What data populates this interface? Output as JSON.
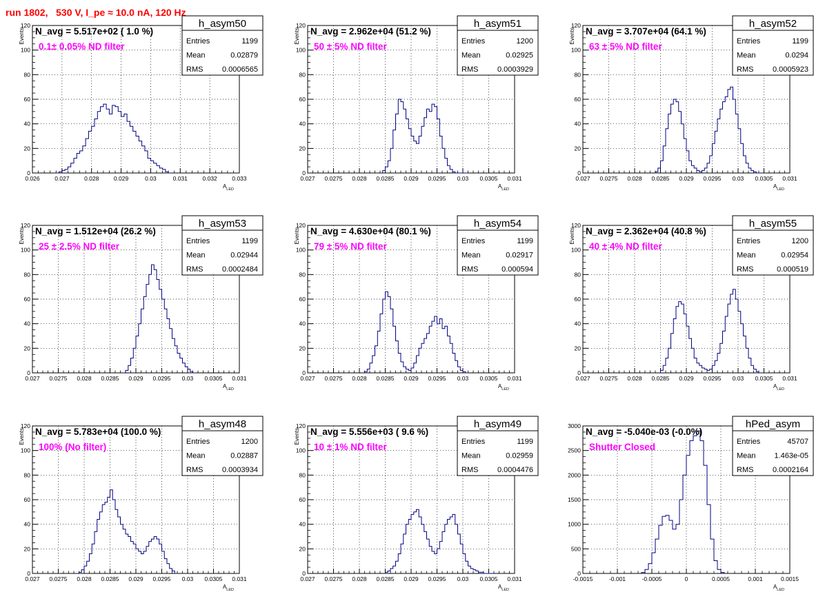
{
  "main_title": "run 1802,   530 V, I_pe ≈ 10.0 nA, 120 Hz",
  "colors": {
    "title": "#ff0000",
    "annotation": "#ff00ff",
    "histogram": "#000080",
    "grid": "#000000"
  },
  "chart_data": [
    {
      "type": "histogram",
      "name": "h_asym50",
      "ylabel": "Events",
      "xlabel": "A",
      "xlabel_sub": "LED",
      "navg": "N_avg = 5.517e+02 ( 1.0 %)",
      "filter": "0.1± 0.05% ND filter",
      "stats": {
        "entries_label": "Entries",
        "entries": "1199",
        "mean_label": "Mean",
        "mean": "0.02879",
        "rms_label": "RMS",
        "rms": "0.0006565"
      },
      "xlim": [
        0.026,
        0.033
      ],
      "ylim": [
        0,
        120
      ],
      "xticks": [
        0.026,
        0.027,
        0.028,
        0.029,
        0.03,
        0.031,
        0.032,
        0.033
      ],
      "xtick_labels": [
        "0.026",
        "0.027",
        "0.028",
        "0.029",
        "0.03",
        "0.031",
        "0.032",
        "0.033"
      ],
      "yticks": [
        0,
        20,
        40,
        60,
        80,
        100,
        120
      ],
      "ytick_labels": [
        "0",
        "20",
        "40",
        "60",
        "80",
        "100",
        "120"
      ],
      "grid": true,
      "bins": [
        0.0268,
        0.0269,
        0.027,
        0.0271,
        0.0272,
        0.0273,
        0.0274,
        0.0275,
        0.0276,
        0.0277,
        0.0278,
        0.0279,
        0.028,
        0.0281,
        0.0282,
        0.0283,
        0.0284,
        0.0285,
        0.0286,
        0.0287,
        0.0288,
        0.0289,
        0.029,
        0.0291,
        0.0292,
        0.0293,
        0.0294,
        0.0295,
        0.0296,
        0.0297,
        0.0298,
        0.0299,
        0.03,
        0.0301,
        0.0302,
        0.0303,
        0.0304,
        0.0305,
        0.0306
      ],
      "values": [
        0,
        1,
        2,
        3,
        5,
        8,
        12,
        16,
        18,
        22,
        28,
        34,
        38,
        44,
        50,
        54,
        56,
        52,
        48,
        55,
        54,
        50,
        46,
        48,
        42,
        38,
        34,
        30,
        26,
        22,
        18,
        12,
        10,
        8,
        6,
        4,
        3,
        1,
        0
      ]
    },
    {
      "type": "histogram",
      "name": "h_asym51",
      "ylabel": "Events",
      "xlabel": "A",
      "xlabel_sub": "LED",
      "navg": "N_avg = 2.962e+04 (51.2 %)",
      "filter": "50 ± 5% ND filter",
      "stats": {
        "entries_label": "Entries",
        "entries": "1200",
        "mean_label": "Mean",
        "mean": "0.02925",
        "rms_label": "RMS",
        "rms": "0.0003929"
      },
      "xlim": [
        0.027,
        0.031
      ],
      "ylim": [
        0,
        120
      ],
      "xticks": [
        0.027,
        0.0275,
        0.028,
        0.0285,
        0.029,
        0.0295,
        0.03,
        0.0305,
        0.031
      ],
      "xtick_labels": [
        "0.027",
        "0.0275",
        "0.028",
        "0.0285",
        "0.029",
        "0.0295",
        "0.03",
        "0.0305",
        "0.031"
      ],
      "yticks": [
        0,
        20,
        40,
        60,
        80,
        100,
        120
      ],
      "ytick_labels": [
        "0",
        "20",
        "40",
        "60",
        "80",
        "100",
        "120"
      ],
      "grid": true,
      "bins": [
        0.02845,
        0.0285,
        0.02855,
        0.0286,
        0.02865,
        0.0287,
        0.02875,
        0.0288,
        0.02885,
        0.0289,
        0.02895,
        0.029,
        0.02905,
        0.0291,
        0.02915,
        0.0292,
        0.02925,
        0.0293,
        0.02935,
        0.0294,
        0.02945,
        0.0295,
        0.02955,
        0.0296,
        0.02965,
        0.0297,
        0.02975,
        0.0298,
        0.02985,
        0.0299,
        0.02995,
        0.03,
        0.03005
      ],
      "values": [
        2,
        5,
        10,
        20,
        35,
        48,
        60,
        58,
        52,
        44,
        36,
        30,
        26,
        24,
        30,
        38,
        45,
        52,
        50,
        56,
        54,
        44,
        30,
        20,
        12,
        6,
        3,
        1,
        0,
        0,
        0,
        0,
        0
      ]
    },
    {
      "type": "histogram",
      "name": "h_asym52",
      "ylabel": "Events",
      "xlabel": "A",
      "xlabel_sub": "LED",
      "navg": "N_avg = 3.707e+04 (64.1 %)",
      "filter": "63 ± 5% ND filter",
      "stats": {
        "entries_label": "Entries",
        "entries": "1199",
        "mean_label": "Mean",
        "mean": "0.0294",
        "rms_label": "RMS",
        "rms": "0.0005923"
      },
      "xlim": [
        0.027,
        0.031
      ],
      "ylim": [
        0,
        120
      ],
      "xticks": [
        0.027,
        0.0275,
        0.028,
        0.0285,
        0.029,
        0.0295,
        0.03,
        0.0305,
        0.031
      ],
      "xtick_labels": [
        "0.027",
        "0.0275",
        "0.028",
        "0.0285",
        "0.029",
        "0.0295",
        "0.03",
        "0.0305",
        "0.031"
      ],
      "yticks": [
        0,
        20,
        40,
        60,
        80,
        100,
        120
      ],
      "ytick_labels": [
        "0",
        "20",
        "40",
        "60",
        "80",
        "100",
        "120"
      ],
      "grid": true,
      "bins": [
        0.0284,
        0.02845,
        0.0285,
        0.02855,
        0.0286,
        0.02865,
        0.0287,
        0.02875,
        0.0288,
        0.02885,
        0.0289,
        0.02895,
        0.029,
        0.02905,
        0.0291,
        0.02915,
        0.0292,
        0.02925,
        0.0293,
        0.02935,
        0.0294,
        0.02945,
        0.0295,
        0.02955,
        0.0296,
        0.02965,
        0.0297,
        0.02975,
        0.0298,
        0.02985,
        0.0299,
        0.02995,
        0.03,
        0.03005,
        0.0301,
        0.03015,
        0.0302,
        0.03025,
        0.0303,
        0.03035,
        0.0304
      ],
      "values": [
        1,
        4,
        10,
        22,
        36,
        48,
        56,
        60,
        58,
        50,
        40,
        28,
        18,
        10,
        6,
        4,
        2,
        1,
        2,
        4,
        8,
        14,
        24,
        34,
        44,
        52,
        58,
        62,
        68,
        70,
        60,
        48,
        36,
        24,
        14,
        8,
        4,
        2,
        1,
        0,
        0
      ]
    },
    {
      "type": "histogram",
      "name": "h_asym53",
      "ylabel": "Events",
      "xlabel": "A",
      "xlabel_sub": "LED",
      "navg": "N_avg = 1.512e+04 (26.2 %)",
      "filter": "25 ± 2.5% ND filter",
      "stats": {
        "entries_label": "Entries",
        "entries": "1199",
        "mean_label": "Mean",
        "mean": "0.02944",
        "rms_label": "RMS",
        "rms": "0.0002484"
      },
      "xlim": [
        0.027,
        0.031
      ],
      "ylim": [
        0,
        120
      ],
      "xticks": [
        0.027,
        0.0275,
        0.028,
        0.0285,
        0.029,
        0.0295,
        0.03,
        0.0305,
        0.031
      ],
      "xtick_labels": [
        "0.027",
        "0.0275",
        "0.028",
        "0.0285",
        "0.029",
        "0.0295",
        "0.03",
        "0.0305",
        "0.031"
      ],
      "yticks": [
        0,
        20,
        40,
        60,
        80,
        100,
        120
      ],
      "ytick_labels": [
        "0",
        "20",
        "40",
        "60",
        "80",
        "100",
        "120"
      ],
      "grid": true,
      "bins": [
        0.0288,
        0.02885,
        0.0289,
        0.02895,
        0.029,
        0.02905,
        0.0291,
        0.02915,
        0.0292,
        0.02925,
        0.0293,
        0.02935,
        0.0294,
        0.02945,
        0.0295,
        0.02955,
        0.0296,
        0.02965,
        0.0297,
        0.02975,
        0.0298,
        0.02985,
        0.0299,
        0.02995,
        0.03,
        0.03005,
        0.0301
      ],
      "values": [
        2,
        6,
        12,
        20,
        30,
        40,
        52,
        62,
        72,
        80,
        88,
        84,
        76,
        68,
        60,
        52,
        44,
        36,
        28,
        22,
        16,
        12,
        8,
        5,
        3,
        1,
        0
      ]
    },
    {
      "type": "histogram",
      "name": "h_asym54",
      "ylabel": "Events",
      "xlabel": "A",
      "xlabel_sub": "LED",
      "navg": "N_avg = 4.630e+04 (80.1 %)",
      "filter": "79 ± 5% ND filter",
      "stats": {
        "entries_label": "Entries",
        "entries": "1199",
        "mean_label": "Mean",
        "mean": "0.02917",
        "rms_label": "RMS",
        "rms": "0.000594"
      },
      "xlim": [
        0.027,
        0.031
      ],
      "ylim": [
        0,
        120
      ],
      "xticks": [
        0.027,
        0.0275,
        0.028,
        0.0285,
        0.029,
        0.0295,
        0.03,
        0.0305,
        0.031
      ],
      "xtick_labels": [
        "0.027",
        "0.0275",
        "0.028",
        "0.0285",
        "0.029",
        "0.0295",
        "0.03",
        "0.0305",
        "0.031"
      ],
      "yticks": [
        0,
        20,
        40,
        60,
        80,
        100,
        120
      ],
      "ytick_labels": [
        "0",
        "20",
        "40",
        "60",
        "80",
        "100",
        "120"
      ],
      "grid": true,
      "bins": [
        0.0281,
        0.02815,
        0.0282,
        0.02825,
        0.0283,
        0.02835,
        0.0284,
        0.02845,
        0.0285,
        0.02855,
        0.0286,
        0.02865,
        0.0287,
        0.02875,
        0.0288,
        0.02885,
        0.0289,
        0.02895,
        0.029,
        0.02905,
        0.0291,
        0.02915,
        0.0292,
        0.02925,
        0.0293,
        0.02935,
        0.0294,
        0.02945,
        0.0295,
        0.02955,
        0.0296,
        0.02965,
        0.0297,
        0.02975,
        0.0298,
        0.02985,
        0.0299,
        0.02995,
        0.03,
        0.03005
      ],
      "values": [
        1,
        3,
        8,
        14,
        22,
        34,
        48,
        60,
        66,
        62,
        52,
        38,
        26,
        16,
        9,
        5,
        3,
        2,
        4,
        8,
        14,
        20,
        24,
        28,
        32,
        38,
        42,
        46,
        40,
        44,
        36,
        38,
        30,
        24,
        16,
        10,
        5,
        2,
        1,
        0
      ]
    },
    {
      "type": "histogram",
      "name": "h_asym55",
      "ylabel": "Events",
      "xlabel": "A",
      "xlabel_sub": "LED",
      "navg": "N_avg = 2.362e+04 (40.8 %)",
      "filter": "40 ± 4% ND filter",
      "stats": {
        "entries_label": "Entries",
        "entries": "1200",
        "mean_label": "Mean",
        "mean": "0.02954",
        "rms_label": "RMS",
        "rms": "0.000519"
      },
      "xlim": [
        0.027,
        0.031
      ],
      "ylim": [
        0,
        120
      ],
      "xticks": [
        0.027,
        0.0275,
        0.028,
        0.0285,
        0.029,
        0.0295,
        0.03,
        0.0305,
        0.031
      ],
      "xtick_labels": [
        "0.027",
        "0.0275",
        "0.028",
        "0.0285",
        "0.029",
        "0.0295",
        "0.03",
        "0.0305",
        "0.031"
      ],
      "yticks": [
        0,
        20,
        40,
        60,
        80,
        100,
        120
      ],
      "ytick_labels": [
        "0",
        "20",
        "40",
        "60",
        "80",
        "100",
        "120"
      ],
      "grid": true,
      "bins": [
        0.0285,
        0.02855,
        0.0286,
        0.02865,
        0.0287,
        0.02875,
        0.0288,
        0.02885,
        0.0289,
        0.02895,
        0.029,
        0.02905,
        0.0291,
        0.02915,
        0.0292,
        0.02925,
        0.0293,
        0.02935,
        0.0294,
        0.02945,
        0.0295,
        0.02955,
        0.0296,
        0.02965,
        0.0297,
        0.02975,
        0.0298,
        0.02985,
        0.0299,
        0.02995,
        0.03,
        0.03005,
        0.0301,
        0.03015,
        0.0302,
        0.03025,
        0.0303,
        0.03035,
        0.0304
      ],
      "values": [
        2,
        6,
        12,
        20,
        32,
        44,
        54,
        58,
        56,
        48,
        38,
        28,
        20,
        12,
        8,
        6,
        4,
        3,
        2,
        3,
        6,
        10,
        16,
        24,
        34,
        46,
        56,
        64,
        68,
        60,
        50,
        40,
        30,
        20,
        12,
        6,
        3,
        1,
        0
      ]
    },
    {
      "type": "histogram",
      "name": "h_asym48",
      "ylabel": "Events",
      "xlabel": "A",
      "xlabel_sub": "LED",
      "navg": "N_avg = 5.783e+04 (100.0 %)",
      "filter": "100% (No filter)",
      "stats": {
        "entries_label": "Entries",
        "entries": "1200",
        "mean_label": "Mean",
        "mean": "0.02887",
        "rms_label": "RMS",
        "rms": "0.0003934"
      },
      "xlim": [
        0.027,
        0.031
      ],
      "ylim": [
        0,
        120
      ],
      "xticks": [
        0.027,
        0.0275,
        0.028,
        0.0285,
        0.029,
        0.0295,
        0.03,
        0.0305,
        0.031
      ],
      "xtick_labels": [
        "0.027",
        "0.0275",
        "0.028",
        "0.0285",
        "0.029",
        "0.0295",
        "0.03",
        "0.0305",
        "0.031"
      ],
      "yticks": [
        0,
        20,
        40,
        60,
        80,
        100,
        120
      ],
      "ytick_labels": [
        "0",
        "20",
        "40",
        "60",
        "80",
        "100",
        "120"
      ],
      "grid": true,
      "bins": [
        0.0279,
        0.02795,
        0.028,
        0.02805,
        0.0281,
        0.02815,
        0.0282,
        0.02825,
        0.0283,
        0.02835,
        0.0284,
        0.02845,
        0.0285,
        0.02855,
        0.0286,
        0.02865,
        0.0287,
        0.02875,
        0.0288,
        0.02885,
        0.0289,
        0.02895,
        0.029,
        0.02905,
        0.0291,
        0.02915,
        0.0292,
        0.02925,
        0.0293,
        0.02935,
        0.0294,
        0.02945,
        0.0295,
        0.02955,
        0.0296,
        0.02965,
        0.0297,
        0.02975
      ],
      "values": [
        1,
        3,
        6,
        10,
        16,
        24,
        34,
        44,
        50,
        56,
        58,
        62,
        68,
        60,
        52,
        46,
        40,
        36,
        32,
        30,
        26,
        24,
        20,
        18,
        16,
        18,
        22,
        26,
        28,
        30,
        28,
        24,
        18,
        12,
        8,
        4,
        2,
        0
      ]
    },
    {
      "type": "histogram",
      "name": "h_asym49",
      "ylabel": "Events",
      "xlabel": "A",
      "xlabel_sub": "LED",
      "navg": "N_avg = 5.556e+03 ( 9.6 %)",
      "filter": "10 ± 1% ND filter",
      "stats": {
        "entries_label": "Entries",
        "entries": "1199",
        "mean_label": "Mean",
        "mean": "0.02959",
        "rms_label": "RMS",
        "rms": "0.0004476"
      },
      "xlim": [
        0.027,
        0.031
      ],
      "ylim": [
        0,
        120
      ],
      "xticks": [
        0.027,
        0.0275,
        0.028,
        0.0285,
        0.029,
        0.0295,
        0.03,
        0.0305,
        0.031
      ],
      "xtick_labels": [
        "0.027",
        "0.0275",
        "0.028",
        "0.0285",
        "0.029",
        "0.0295",
        "0.03",
        "0.0305",
        "0.031"
      ],
      "yticks": [
        0,
        20,
        40,
        60,
        80,
        100,
        120
      ],
      "ytick_labels": [
        "0",
        "20",
        "40",
        "60",
        "80",
        "100",
        "120"
      ],
      "grid": true,
      "bins": [
        0.0285,
        0.02855,
        0.0286,
        0.02865,
        0.0287,
        0.02875,
        0.0288,
        0.02885,
        0.0289,
        0.02895,
        0.029,
        0.02905,
        0.0291,
        0.02915,
        0.0292,
        0.02925,
        0.0293,
        0.02935,
        0.0294,
        0.02945,
        0.0295,
        0.02955,
        0.0296,
        0.02965,
        0.0297,
        0.02975,
        0.0298,
        0.02985,
        0.0299,
        0.02995,
        0.03,
        0.03005,
        0.0301,
        0.03015,
        0.0302,
        0.03025,
        0.0303,
        0.03035,
        0.0304,
        0.03045,
        0.0305,
        0.03055
      ],
      "values": [
        1,
        2,
        4,
        6,
        10,
        16,
        24,
        32,
        40,
        44,
        48,
        50,
        52,
        46,
        40,
        34,
        28,
        22,
        18,
        16,
        20,
        26,
        34,
        40,
        44,
        46,
        48,
        40,
        32,
        24,
        16,
        10,
        6,
        4,
        3,
        2,
        1,
        1,
        0,
        0,
        0,
        0
      ]
    },
    {
      "type": "histogram",
      "name": "hPed_asym",
      "ylabel": "",
      "xlabel": "A",
      "xlabel_sub": "LED",
      "navg": "N_avg = -5.040e-03 (-0.0%)",
      "filter": "Shutter Closed",
      "stats": {
        "entries_label": "Entries",
        "entries": "45707",
        "mean_label": "Mean",
        "mean": "1.463e-05",
        "rms_label": "RMS",
        "rms": "0.0002164"
      },
      "xlim": [
        -0.0015,
        0.0015
      ],
      "ylim": [
        0,
        3000
      ],
      "xticks": [
        -0.0015,
        -0.001,
        -0.0005,
        0,
        0.0005,
        0.001,
        0.0015
      ],
      "xtick_labels": [
        "-0.0015",
        "-0.001",
        "-0.0005",
        "0",
        "0.0005",
        "0.001",
        "0.0015"
      ],
      "yticks": [
        0,
        500,
        1000,
        1500,
        2000,
        2500,
        3000
      ],
      "ytick_labels": [
        "0",
        "500",
        "1000",
        "1500",
        "2000",
        "2500",
        "3000"
      ],
      "grid": true,
      "bins": [
        -0.00065,
        -0.0006,
        -0.00055,
        -0.0005,
        -0.00045,
        -0.0004,
        -0.00035,
        -0.0003,
        -0.00025,
        -0.0002,
        -0.00015,
        -0.0001,
        -5e-05,
        0,
        5e-05,
        0.0001,
        0.00015,
        0.0002,
        0.00025,
        0.0003,
        0.00035,
        0.0004,
        0.00045,
        0.0005
      ],
      "values": [
        20,
        80,
        200,
        420,
        700,
        980,
        1160,
        1180,
        1080,
        900,
        1000,
        1500,
        2000,
        2400,
        2700,
        2800,
        2900,
        2700,
        2200,
        1400,
        700,
        260,
        80,
        20
      ]
    }
  ]
}
